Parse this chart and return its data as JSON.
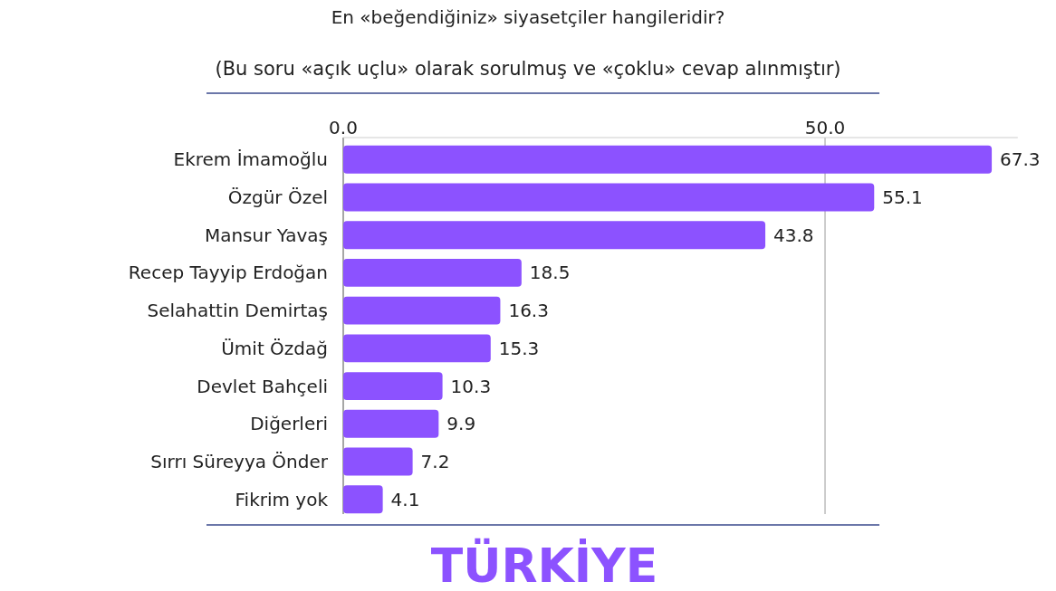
{
  "chart_data": {
    "type": "bar",
    "orientation": "horizontal",
    "title": "En «beğendiğiniz» siyasetçiler hangileridir?",
    "subtitle": "(Bu soru «açık uçlu» olarak sorulmuş ve «çoklu» cevap alınmıştır)",
    "categories": [
      "Ekrem İmamoğlu",
      "Özgür Özel",
      "Mansur Yavaş",
      "Recep Tayyip Erdoğan",
      "Selahattin Demirtaş",
      "Ümit Özdağ",
      "Devlet Bahçeli",
      "Diğerleri",
      "Sırrı Süreyya Önder",
      "Fikrim yok"
    ],
    "values": [
      67.3,
      55.1,
      43.8,
      18.5,
      16.3,
      15.3,
      10.3,
      9.9,
      7.2,
      4.1
    ],
    "color": "#8c52ff",
    "xlim": [
      0,
      70
    ],
    "xticks": [
      {
        "value": 0,
        "label": "0.0"
      },
      {
        "value": 50,
        "label": "50.0"
      }
    ],
    "grid": "x",
    "data_labels": true,
    "annotations": [
      "TÜRKİYE"
    ]
  }
}
